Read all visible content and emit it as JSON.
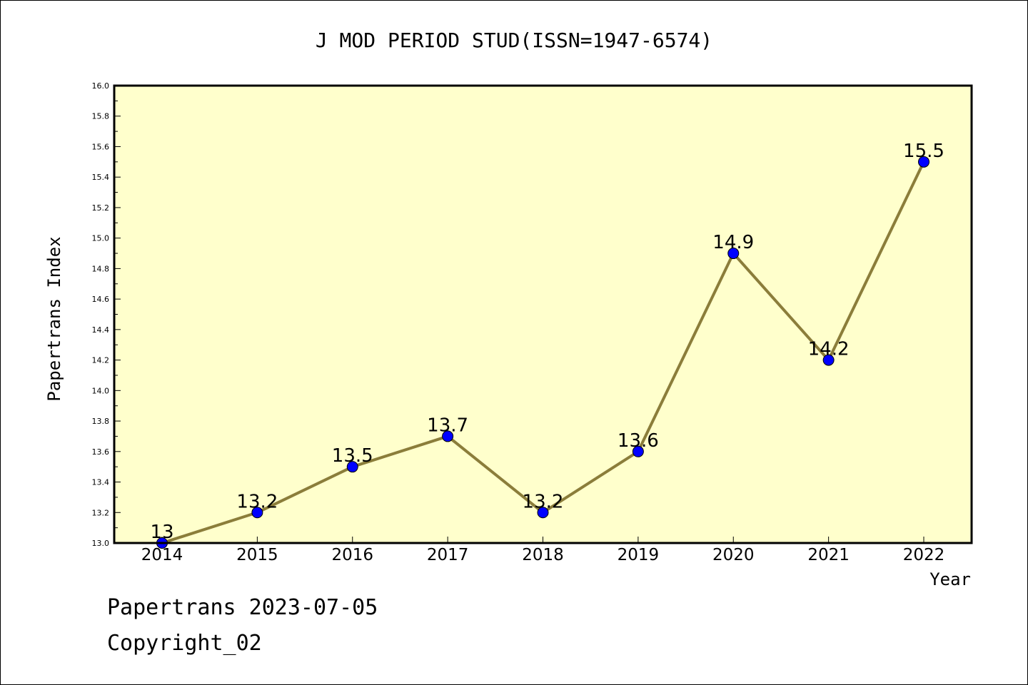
{
  "footer": {
    "line1": "Papertrans 2023-07-05",
    "line2": "Copyright_02"
  },
  "chart_data": {
    "type": "line",
    "title": "J MOD PERIOD STUD(ISSN=1947-6574)",
    "xlabel": "Year",
    "ylabel": "Papertrans Index",
    "x": [
      "2014",
      "2015",
      "2016",
      "2017",
      "2018",
      "2019",
      "2020",
      "2021",
      "2022"
    ],
    "series": [
      {
        "values": [
          13,
          13.2,
          13.5,
          13.7,
          13.2,
          13.6,
          14.9,
          14.2,
          15.5
        ],
        "data_labels": [
          "13",
          "13.2",
          "13.5",
          "13.7",
          "13.2",
          "13.6",
          "14.9",
          "14.2",
          "15.5"
        ]
      }
    ],
    "ylim": [
      13.0,
      16.0
    ],
    "yticks": [
      "13.0",
      "13.2",
      "13.4",
      "13.6",
      "13.8",
      "14.0",
      "14.2",
      "14.4",
      "14.6",
      "14.8",
      "15.0",
      "15.2",
      "15.4",
      "15.6",
      "15.8",
      "16.0"
    ],
    "grid": false,
    "legend": "none",
    "colors": {
      "plot_background": "#ffffcc",
      "line": "#8b7d3a",
      "marker": "#0000ff"
    }
  }
}
